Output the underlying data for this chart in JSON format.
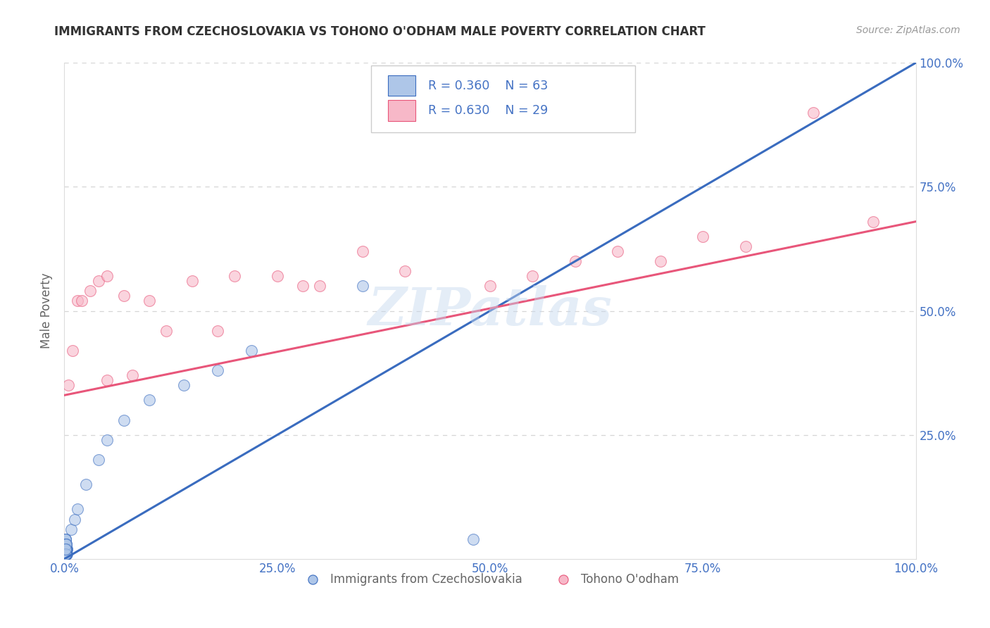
{
  "title": "IMMIGRANTS FROM CZECHOSLOVAKIA VS TOHONO O'ODHAM MALE POVERTY CORRELATION CHART",
  "source": "Source: ZipAtlas.com",
  "ylabel": "Male Poverty",
  "watermark": "ZIPatlas",
  "legend1_label": "Immigrants from Czechoslovakia",
  "legend2_label": "Tohono O'odham",
  "R1": 0.36,
  "N1": 63,
  "R2": 0.63,
  "N2": 29,
  "color1": "#aec6e8",
  "color2": "#f7b8c8",
  "line1_color": "#3a6cbf",
  "line2_color": "#e8567a",
  "dashed_line_color": "#a0b8d8",
  "grid_color": "#cccccc",
  "xlim": [
    0,
    1
  ],
  "ylim": [
    0,
    1
  ],
  "xticks": [
    0.0,
    0.25,
    0.5,
    0.75,
    1.0
  ],
  "yticks": [
    0.0,
    0.25,
    0.5,
    0.75,
    1.0
  ],
  "xticklabels": [
    "0.0%",
    "25.0%",
    "50.0%",
    "75.0%",
    "100.0%"
  ],
  "right_yticklabels": [
    "",
    "25.0%",
    "50.0%",
    "75.0%",
    "100.0%"
  ],
  "tick_color": "#4472c4",
  "bg_color": "#ffffff",
  "title_color": "#333333",
  "axis_label_color": "#666666",
  "blue_line_slope": 1.05,
  "blue_line_intercept": -0.02,
  "pink_line_slope": 0.35,
  "pink_line_intercept": 0.33,
  "blue_scatter_x": [
    0.001,
    0.001,
    0.002,
    0.001,
    0.003,
    0.001,
    0.002,
    0.001,
    0.002,
    0.001,
    0.001,
    0.002,
    0.001,
    0.001,
    0.002,
    0.001,
    0.003,
    0.002,
    0.001,
    0.001,
    0.001,
    0.002,
    0.001,
    0.001,
    0.002,
    0.001,
    0.001,
    0.002,
    0.001,
    0.003,
    0.001,
    0.001,
    0.002,
    0.001,
    0.001,
    0.002,
    0.001,
    0.002,
    0.001,
    0.001,
    0.001,
    0.001,
    0.002,
    0.001,
    0.002,
    0.001,
    0.001,
    0.002,
    0.001,
    0.001,
    0.008,
    0.012,
    0.015,
    0.025,
    0.04,
    0.05,
    0.07,
    0.1,
    0.14,
    0.18,
    0.22,
    0.35,
    0.48
  ],
  "blue_scatter_y": [
    0.01,
    0.02,
    0.01,
    0.03,
    0.01,
    0.02,
    0.02,
    0.03,
    0.01,
    0.04,
    0.02,
    0.01,
    0.03,
    0.02,
    0.01,
    0.04,
    0.02,
    0.01,
    0.03,
    0.02,
    0.01,
    0.02,
    0.03,
    0.01,
    0.02,
    0.01,
    0.02,
    0.03,
    0.01,
    0.02,
    0.03,
    0.01,
    0.02,
    0.03,
    0.01,
    0.02,
    0.01,
    0.03,
    0.02,
    0.01,
    0.04,
    0.02,
    0.01,
    0.03,
    0.02,
    0.01,
    0.02,
    0.03,
    0.01,
    0.02,
    0.06,
    0.08,
    0.1,
    0.15,
    0.2,
    0.24,
    0.28,
    0.32,
    0.35,
    0.38,
    0.42,
    0.55,
    0.04
  ],
  "pink_scatter_x": [
    0.005,
    0.01,
    0.015,
    0.02,
    0.03,
    0.04,
    0.05,
    0.05,
    0.07,
    0.08,
    0.1,
    0.12,
    0.15,
    0.18,
    0.2,
    0.25,
    0.28,
    0.3,
    0.35,
    0.4,
    0.5,
    0.55,
    0.6,
    0.65,
    0.7,
    0.75,
    0.8,
    0.88,
    0.95
  ],
  "pink_scatter_y": [
    0.35,
    0.42,
    0.52,
    0.52,
    0.54,
    0.56,
    0.57,
    0.36,
    0.53,
    0.37,
    0.52,
    0.46,
    0.56,
    0.46,
    0.57,
    0.57,
    0.55,
    0.55,
    0.62,
    0.58,
    0.55,
    0.57,
    0.6,
    0.62,
    0.6,
    0.65,
    0.63,
    0.9,
    0.68
  ]
}
